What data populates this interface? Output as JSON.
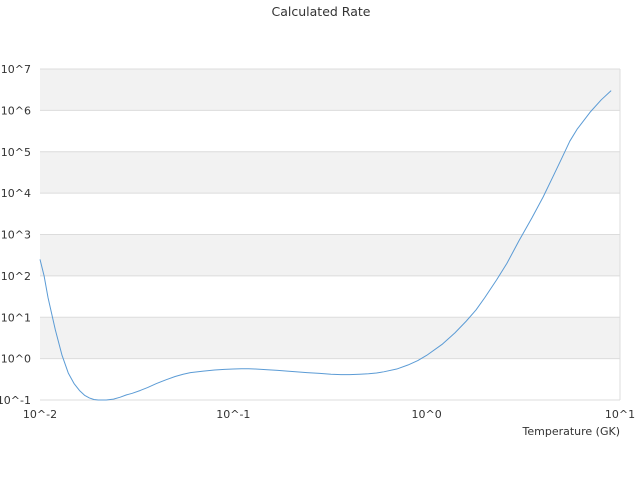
{
  "chart_data": {
    "type": "line",
    "title": "Calculated Rate",
    "xlabel": "Temperature (GK)",
    "ylabel": "",
    "x_scale": "log",
    "y_scale": "log",
    "xlim": [
      0.01,
      10
    ],
    "ylim": [
      0.1,
      10000000
    ],
    "x_ticks": [
      {
        "value": 0.01,
        "label": "10^-2"
      },
      {
        "value": 0.1,
        "label": "10^-1"
      },
      {
        "value": 1,
        "label": "10^0"
      },
      {
        "value": 10,
        "label": "10^1"
      }
    ],
    "y_ticks": [
      {
        "value": 0.1,
        "label": "10^-1"
      },
      {
        "value": 1,
        "label": "10^0"
      },
      {
        "value": 10,
        "label": "10^1"
      },
      {
        "value": 100,
        "label": "10^2"
      },
      {
        "value": 1000,
        "label": "10^3"
      },
      {
        "value": 10000,
        "label": "10^4"
      },
      {
        "value": 100000,
        "label": "10^5"
      },
      {
        "value": 1000000,
        "label": "10^6"
      },
      {
        "value": 10000000,
        "label": "10^7"
      }
    ],
    "grid": true,
    "legend": "none",
    "series": [
      {
        "color": "#5b9bd5",
        "x": [
          0.01,
          0.0105,
          0.011,
          0.012,
          0.013,
          0.014,
          0.015,
          0.016,
          0.017,
          0.018,
          0.019,
          0.02,
          0.022,
          0.024,
          0.026,
          0.028,
          0.03,
          0.033,
          0.036,
          0.04,
          0.045,
          0.05,
          0.055,
          0.06,
          0.07,
          0.08,
          0.09,
          0.1,
          0.11,
          0.12,
          0.13,
          0.14,
          0.15,
          0.17,
          0.19,
          0.21,
          0.24,
          0.28,
          0.32,
          0.36,
          0.4,
          0.45,
          0.5,
          0.55,
          0.6,
          0.7,
          0.8,
          0.9,
          1.0,
          1.2,
          1.4,
          1.6,
          1.8,
          2.0,
          2.3,
          2.6,
          3.0,
          3.5,
          4.0,
          4.5,
          5.0,
          5.5,
          6.0,
          7.0,
          8.0,
          9.0
        ],
        "y": [
          250,
          100,
          30,
          5,
          1.2,
          0.45,
          0.25,
          0.17,
          0.13,
          0.112,
          0.103,
          0.1,
          0.1,
          0.105,
          0.117,
          0.133,
          0.145,
          0.17,
          0.2,
          0.25,
          0.31,
          0.37,
          0.42,
          0.46,
          0.5,
          0.53,
          0.55,
          0.56,
          0.57,
          0.57,
          0.56,
          0.55,
          0.54,
          0.52,
          0.5,
          0.48,
          0.46,
          0.44,
          0.42,
          0.41,
          0.41,
          0.42,
          0.43,
          0.45,
          0.48,
          0.56,
          0.7,
          0.9,
          1.2,
          2.2,
          4.2,
          8,
          15,
          30,
          80,
          200,
          700,
          2500,
          8000,
          25000,
          70000,
          180000,
          350000,
          900000,
          1800000,
          3000000
        ]
      }
    ]
  }
}
